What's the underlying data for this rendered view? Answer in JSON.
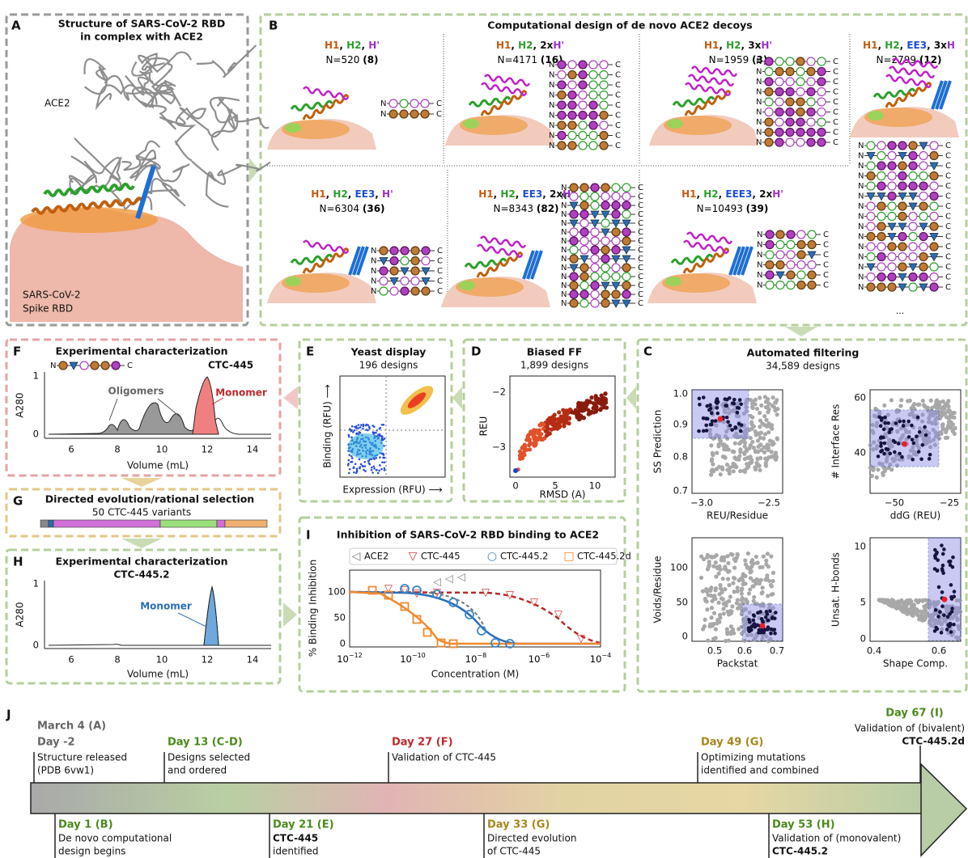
{
  "panel_a": {
    "letter": "A",
    "title_lines": [
      "Structure of SARS-CoV-2 RBD",
      "in complex with ACE2"
    ],
    "label_ace2": "ACE2",
    "label_rbd_lines": [
      "SARS-CoV-2",
      "Spike RBD"
    ]
  },
  "panel_b": {
    "letter": "B",
    "title": "Computational design of de novo ACE2 decoys",
    "seq_start": "N",
    "seq_end": "C",
    "ellipsis": "...",
    "topologies": [
      {
        "label": [
          {
            "text": "H1",
            "color": "#c55a11"
          },
          {
            "text": ", "
          },
          {
            "text": "H2",
            "color": "#2e9e2e"
          },
          {
            "text": ", "
          },
          {
            "text": "H'",
            "color": "#9b30c8"
          }
        ],
        "count": "N=520",
        "selected": "(8)"
      },
      {
        "label": [
          {
            "text": "H1",
            "color": "#c55a11"
          },
          {
            "text": ", "
          },
          {
            "text": "H2",
            "color": "#2e9e2e"
          },
          {
            "text": ", 2x"
          },
          {
            "text": "H'",
            "color": "#9b30c8"
          }
        ],
        "count": "N=4171",
        "selected": "(16)"
      },
      {
        "label": [
          {
            "text": "H1",
            "color": "#c55a11"
          },
          {
            "text": ", "
          },
          {
            "text": "H2",
            "color": "#2e9e2e"
          },
          {
            "text": ", 3x"
          },
          {
            "text": "H'",
            "color": "#9b30c8"
          }
        ],
        "count": "N=1959",
        "selected": "(3)"
      },
      {
        "label": [
          {
            "text": "H1",
            "color": "#c55a11"
          },
          {
            "text": ", "
          },
          {
            "text": "H2",
            "color": "#2e9e2e"
          },
          {
            "text": ", "
          },
          {
            "text": "EE3",
            "color": "#1f4fd1"
          },
          {
            "text": ", 3x"
          },
          {
            "text": "H",
            "color": "#9b30c8"
          }
        ],
        "count": "N=2799",
        "selected": "(12)"
      },
      {
        "label": [
          {
            "text": "H1",
            "color": "#c55a11"
          },
          {
            "text": ", "
          },
          {
            "text": "H2",
            "color": "#2e9e2e"
          },
          {
            "text": ", "
          },
          {
            "text": "EE3",
            "color": "#1f4fd1"
          },
          {
            "text": ", "
          },
          {
            "text": "H'",
            "color": "#9b30c8"
          }
        ],
        "count": "N=6304",
        "selected": "(36)"
      },
      {
        "label": [
          {
            "text": "H1",
            "color": "#c55a11"
          },
          {
            "text": ", "
          },
          {
            "text": "H2",
            "color": "#2e9e2e"
          },
          {
            "text": ", "
          },
          {
            "text": "EE3",
            "color": "#1f4fd1"
          },
          {
            "text": ", 2x"
          },
          {
            "text": "H'",
            "color": "#9b30c8"
          }
        ],
        "count": "N=8343",
        "selected": "(82)"
      },
      {
        "label": [
          {
            "text": "H1",
            "color": "#c55a11"
          },
          {
            "text": ", "
          },
          {
            "text": "H2",
            "color": "#2e9e2e"
          },
          {
            "text": ", "
          },
          {
            "text": "EEE3",
            "color": "#1f4fd1"
          },
          {
            "text": ", 2x"
          },
          {
            "text": "H'",
            "color": "#9b30c8"
          }
        ],
        "count": "N=10493",
        "selected": "(39)"
      }
    ]
  },
  "panel_c": {
    "letter": "C",
    "title": "Automated filtering",
    "subtitle": "34,589 designs",
    "plots": [
      {
        "xlabel": "REU/Residue",
        "ylabel": "SS Prediction",
        "xticks": [
          "−3.0",
          "−2.5"
        ],
        "yticks": [
          "0.7",
          "0.8",
          "0.9",
          "1.0"
        ]
      },
      {
        "xlabel": "ddG (REU)",
        "ylabel": "# Interface Res",
        "xticks": [
          "−50",
          "−25"
        ],
        "yticks": [
          "40",
          "60"
        ]
      },
      {
        "xlabel": "Packstat",
        "ylabel": "Voids/Residue",
        "xticks": [
          "0.5",
          "0.6",
          "0.7"
        ],
        "yticks": [
          "0",
          "50",
          "100"
        ]
      },
      {
        "xlabel": "Shape Comp.",
        "ylabel": "Unsat. H-bonds",
        "xticks": [
          "0.4",
          "0.6"
        ],
        "yticks": [
          "0",
          "5",
          "10"
        ]
      }
    ]
  },
  "panel_d": {
    "letter": "D",
    "title": "Biased FF",
    "subtitle": "1,899 designs",
    "xlabel": "RMSD (A)",
    "ylabel": "REU",
    "xticks": [
      "0",
      "5",
      "10"
    ],
    "yticks": [
      "−3",
      "−2"
    ]
  },
  "panel_e": {
    "letter": "E",
    "title": "Yeast display",
    "subtitle": "196 designs",
    "xlabel": "Expression (RFU) ⟶",
    "ylabel": "Binding (RFU) ⟶"
  },
  "panel_f": {
    "letter": "F",
    "title": "Experimental characterization",
    "design": "CTC-445",
    "annotation_oligomers": "Oligomers",
    "annotation_monomer": "Monomer",
    "ylabel": "A280",
    "yticks": [
      "0",
      "1"
    ],
    "xlabel": "Volume (mL)",
    "xticks": [
      "6",
      "8",
      "10",
      "12",
      "14"
    ]
  },
  "panel_g": {
    "letter": "G",
    "title": "Directed evolution/rational selection",
    "subtitle": "50 CTC-445 variants"
  },
  "panel_h": {
    "letter": "H",
    "title": "Experimental characterization",
    "design": "CTC-445.2",
    "annotation_monomer": "Monomer",
    "ylabel": "A280",
    "yticks": [
      "0",
      "1"
    ],
    "xlabel": "Volume (mL)",
    "xticks": [
      "6",
      "8",
      "10",
      "12",
      "14"
    ]
  },
  "panel_i": {
    "letter": "I",
    "title": "Inhibition of SARS-CoV-2 RBD binding to ACE2",
    "legend": [
      "ACE2",
      "CTC-445",
      "CTC-445.2",
      "CTC-445.2d"
    ],
    "ylabel": "% Binding Inhibition",
    "yticks": [
      "0",
      "50",
      "100"
    ],
    "xlabel": "Concentration (M)",
    "xtick_base": "10",
    "xtick_exponents": [
      "−12",
      "−10",
      "−8",
      "−6",
      "−4"
    ]
  },
  "panel_j": {
    "letter": "J",
    "top_events": [
      {
        "date_above": "March 4 (A)",
        "date": "Day -2",
        "color": "#666666",
        "text": [
          "Structure released",
          "(PDB 6vw1)"
        ]
      },
      {
        "date": "Day 13 (C-D)",
        "color": "#4a8a1a",
        "text": [
          "Designs selected",
          "and ordered"
        ]
      },
      {
        "date": "Day 27 (F)",
        "color": "#c0282d",
        "text": [
          "Validation of CTC-445"
        ]
      },
      {
        "date": "Day 49 (G)",
        "color": "#a8861a",
        "text": [
          "Optimizing mutations",
          "identified and combined"
        ]
      },
      {
        "date": "Day 67 (I)",
        "color": "#4a8a1a",
        "text": [
          "Validation of (bivalent)"
        ],
        "highlight": "CTC-445.2d"
      }
    ],
    "bottom_events": [
      {
        "date": "Day 1 (B)",
        "color": "#4a8a1a",
        "text": [
          "De novo computational",
          "design begins"
        ]
      },
      {
        "date": "Day 21 (E)",
        "color": "#4a8a1a",
        "highlight": "CTC-445",
        "text": [
          "identified"
        ]
      },
      {
        "date": "Day 33 (G)",
        "color": "#a8861a",
        "text": [
          "Directed evolution",
          "of CTC-445"
        ]
      },
      {
        "date": "Day 53 (H)",
        "color": "#4a8a1a",
        "text": [
          "Validation of (monovalent)"
        ],
        "highlight": "CTC-445.2"
      }
    ]
  }
}
